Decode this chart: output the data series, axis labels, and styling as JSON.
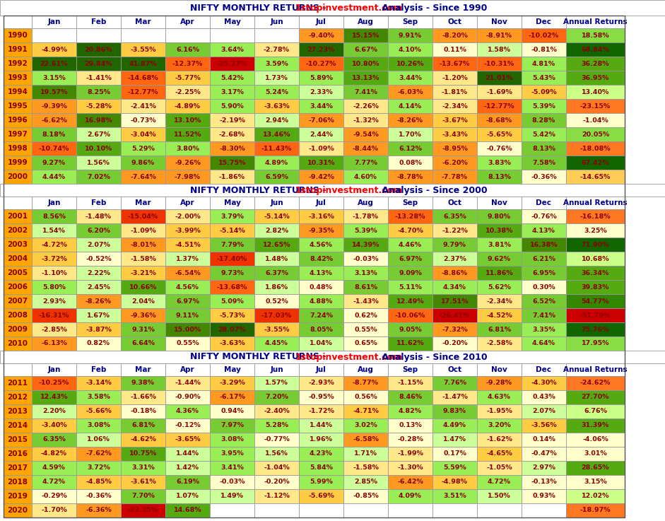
{
  "columns": [
    "Jan",
    "Feb",
    "Mar",
    "Apr",
    "May",
    "Jun",
    "Jul",
    "Aug",
    "Sep",
    "Oct",
    "Nov",
    "Dec",
    "Annual Returns"
  ],
  "data": {
    "1990": [
      null,
      null,
      null,
      null,
      null,
      null,
      -9.4,
      15.15,
      9.91,
      -8.2,
      -8.91,
      -10.02,
      18.58
    ],
    "1991": [
      -4.99,
      20.86,
      -3.55,
      6.16,
      3.64,
      -2.78,
      27.23,
      6.67,
      4.1,
      0.11,
      1.58,
      -0.81,
      68.84
    ],
    "1992": [
      22.61,
      29.84,
      41.87,
      -12.37,
      -25.27,
      3.59,
      -10.27,
      10.8,
      10.26,
      -13.67,
      -10.31,
      4.81,
      36.28
    ],
    "1993": [
      3.15,
      -1.41,
      -14.68,
      -5.77,
      5.42,
      1.73,
      5.89,
      13.13,
      3.44,
      -1.2,
      21.01,
      5.43,
      36.95
    ],
    "1994": [
      19.57,
      8.25,
      -12.77,
      -2.25,
      3.17,
      5.24,
      2.33,
      7.41,
      -6.03,
      -1.81,
      -1.69,
      -5.09,
      13.4
    ],
    "1995": [
      -9.39,
      -5.28,
      -2.41,
      -4.89,
      5.9,
      -3.63,
      3.44,
      -2.26,
      4.14,
      -2.34,
      -12.77,
      5.39,
      -23.15
    ],
    "1996": [
      -6.62,
      16.98,
      -0.73,
      13.1,
      -2.19,
      2.94,
      -7.06,
      -1.32,
      -8.26,
      -3.67,
      -8.68,
      8.28,
      -1.04
    ],
    "1997": [
      8.18,
      2.67,
      -3.04,
      11.52,
      -2.68,
      13.46,
      2.44,
      -9.54,
      1.7,
      -3.43,
      -5.65,
      5.42,
      20.05
    ],
    "1998": [
      -10.74,
      10.1,
      5.29,
      3.8,
      -8.3,
      -11.43,
      -1.09,
      -8.44,
      6.12,
      -8.95,
      -0.76,
      8.13,
      -18.08
    ],
    "1999": [
      9.27,
      1.56,
      9.86,
      -9.26,
      15.75,
      4.89,
      10.31,
      7.77,
      0.08,
      -6.2,
      3.83,
      7.58,
      67.42
    ],
    "2000": [
      4.44,
      7.02,
      -7.64,
      -7.98,
      -1.86,
      6.59,
      -9.42,
      4.6,
      -8.78,
      -7.78,
      8.13,
      -0.36,
      -14.65
    ],
    "2001": [
      8.56,
      -1.48,
      -15.04,
      -2.0,
      3.79,
      -5.14,
      -3.16,
      -1.78,
      -13.28,
      6.35,
      9.8,
      -0.76,
      -16.18
    ],
    "2002": [
      1.54,
      6.2,
      -1.09,
      -3.99,
      -5.14,
      2.82,
      -9.35,
      5.39,
      -4.7,
      -1.22,
      10.38,
      4.13,
      3.25
    ],
    "2003": [
      -4.72,
      2.07,
      -8.01,
      -4.51,
      7.79,
      12.65,
      4.56,
      14.39,
      4.46,
      9.79,
      3.81,
      16.38,
      71.9
    ],
    "2004": [
      -3.72,
      -0.52,
      -1.58,
      1.37,
      -17.4,
      1.48,
      8.42,
      -0.03,
      6.97,
      2.37,
      9.62,
      6.21,
      10.68
    ],
    "2005": [
      -1.1,
      2.22,
      -3.21,
      -6.54,
      9.73,
      6.37,
      4.13,
      3.13,
      9.09,
      -8.86,
      11.86,
      6.95,
      36.34
    ],
    "2006": [
      5.8,
      2.45,
      10.66,
      4.56,
      -13.68,
      1.86,
      0.48,
      8.61,
      5.11,
      4.34,
      5.62,
      0.3,
      39.83
    ],
    "2007": [
      2.93,
      -8.26,
      2.04,
      6.97,
      5.09,
      0.52,
      4.88,
      -1.43,
      12.49,
      17.51,
      -2.34,
      6.52,
      54.77
    ],
    "2008": [
      -16.31,
      1.67,
      -9.36,
      9.11,
      -5.73,
      -17.03,
      7.24,
      0.62,
      -10.06,
      -26.41,
      -4.52,
      7.41,
      -51.79
    ],
    "2009": [
      -2.85,
      -3.87,
      9.31,
      15.0,
      28.07,
      -3.55,
      8.05,
      0.55,
      9.05,
      -7.32,
      6.81,
      3.35,
      75.76
    ],
    "2010": [
      -6.13,
      0.82,
      6.64,
      0.55,
      -3.63,
      4.45,
      1.04,
      0.65,
      11.62,
      -0.2,
      -2.58,
      4.64,
      17.95
    ],
    "2011": [
      -10.25,
      -3.14,
      9.38,
      -1.44,
      -3.29,
      1.57,
      -2.93,
      -8.77,
      -1.15,
      7.76,
      -9.28,
      -4.3,
      -24.62
    ],
    "2012": [
      12.43,
      3.58,
      -1.66,
      -0.9,
      -6.17,
      7.2,
      -0.95,
      0.56,
      8.46,
      -1.47,
      4.63,
      0.43,
      27.7
    ],
    "2013": [
      2.2,
      -5.66,
      -0.18,
      4.36,
      0.94,
      -2.4,
      -1.72,
      -4.71,
      4.82,
      9.83,
      -1.95,
      2.07,
      6.76
    ],
    "2014": [
      -3.4,
      3.08,
      6.81,
      -0.12,
      7.97,
      5.28,
      1.44,
      3.02,
      0.13,
      4.49,
      3.2,
      -3.56,
      31.39
    ],
    "2015": [
      6.35,
      1.06,
      -4.62,
      -3.65,
      3.08,
      -0.77,
      1.96,
      -6.58,
      -0.28,
      1.47,
      -1.62,
      0.14,
      -4.06
    ],
    "2016": [
      -4.82,
      -7.62,
      10.75,
      1.44,
      3.95,
      1.56,
      4.23,
      1.71,
      -1.99,
      0.17,
      -4.65,
      -0.47,
      3.01
    ],
    "2017": [
      4.59,
      3.72,
      3.31,
      1.42,
      3.41,
      -1.04,
      5.84,
      -1.58,
      -1.3,
      5.59,
      -1.05,
      2.97,
      28.65
    ],
    "2018": [
      4.72,
      -4.85,
      -3.61,
      6.19,
      -0.03,
      -0.2,
      5.99,
      2.85,
      -6.42,
      -4.98,
      4.72,
      -0.13,
      3.15
    ],
    "2019": [
      -0.29,
      -0.36,
      7.7,
      1.07,
      1.49,
      -1.12,
      -5.69,
      -0.85,
      4.09,
      3.51,
      1.5,
      0.93,
      12.02
    ],
    "2020": [
      -1.7,
      -6.36,
      -23.25,
      14.68,
      null,
      null,
      null,
      null,
      null,
      null,
      null,
      null,
      -18.97
    ]
  },
  "years_section1": [
    "1990",
    "1991",
    "1992",
    "1993",
    "1994",
    "1995",
    "1996",
    "1997",
    "1998",
    "1999",
    "2000"
  ],
  "years_section2": [
    "2001",
    "2002",
    "2003",
    "2004",
    "2005",
    "2006",
    "2007",
    "2008",
    "2009",
    "2010"
  ],
  "years_section3": [
    "2011",
    "2012",
    "2013",
    "2014",
    "2015",
    "2016",
    "2017",
    "2018",
    "2019",
    "2020"
  ],
  "title_color_main": "#00008B",
  "title_color_accent": "#FF0000",
  "text_color": "#8B0000",
  "header_text_color": "#00008B",
  "year_col_color": "#FFA500",
  "cell_border_color": "#999999",
  "title_bg": "#FFFFFF",
  "section_bg": "#FFFFFF"
}
